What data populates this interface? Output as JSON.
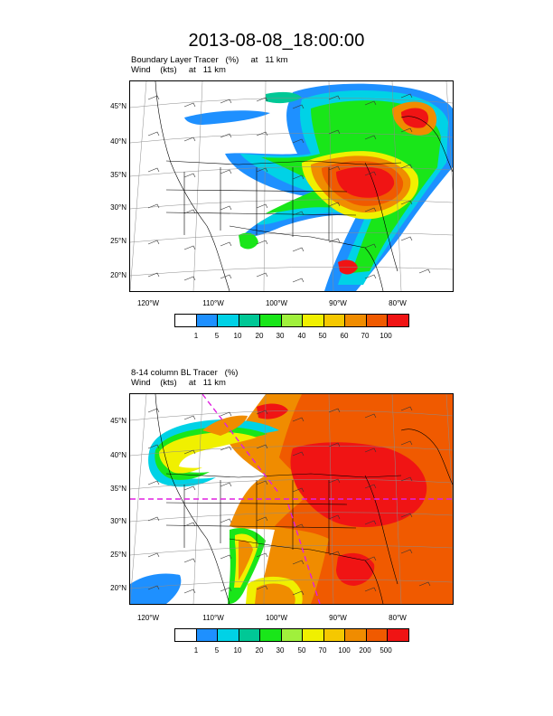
{
  "title": "2013-08-08_18:00:00",
  "panels": [
    {
      "label_line1": "Boundary Layer Tracer   (%)     at   11 km",
      "label_line2": "Wind    (kts)     at   11 km",
      "lat_labels": [
        "45°N",
        "40°N",
        "35°N",
        "30°N",
        "25°N",
        "20°N"
      ],
      "lon_labels": [
        "120°W",
        "110°W",
        "100°W",
        "90°W",
        "80°W"
      ],
      "colorbar_levels": [
        "1",
        "5",
        "10",
        "20",
        "30",
        "40",
        "50",
        "60",
        "70",
        "100"
      ],
      "colorbar_colors": [
        "#ffffff",
        "#1e90ff",
        "#00d2e6",
        "#00c896",
        "#19e619",
        "#a0f03c",
        "#f0f000",
        "#f5c800",
        "#f08c00",
        "#f05a00",
        "#f01414"
      ]
    },
    {
      "label_line1": "8-14 column BL Tracer   (%)",
      "label_line2": "Wind    (kts)     at   11 km",
      "lat_labels": [
        "45°N",
        "40°N",
        "35°N",
        "30°N",
        "25°N",
        "20°N"
      ],
      "lon_labels": [
        "120°W",
        "110°W",
        "100°W",
        "90°W",
        "80°W"
      ],
      "colorbar_levels": [
        "1",
        "5",
        "10",
        "20",
        "30",
        "50",
        "70",
        "100",
        "200",
        "500"
      ],
      "colorbar_colors": [
        "#ffffff",
        "#1e90ff",
        "#00d2e6",
        "#00c896",
        "#19e619",
        "#a0f03c",
        "#f0f000",
        "#f5c800",
        "#f08c00",
        "#f05a00",
        "#f01414"
      ]
    }
  ]
}
